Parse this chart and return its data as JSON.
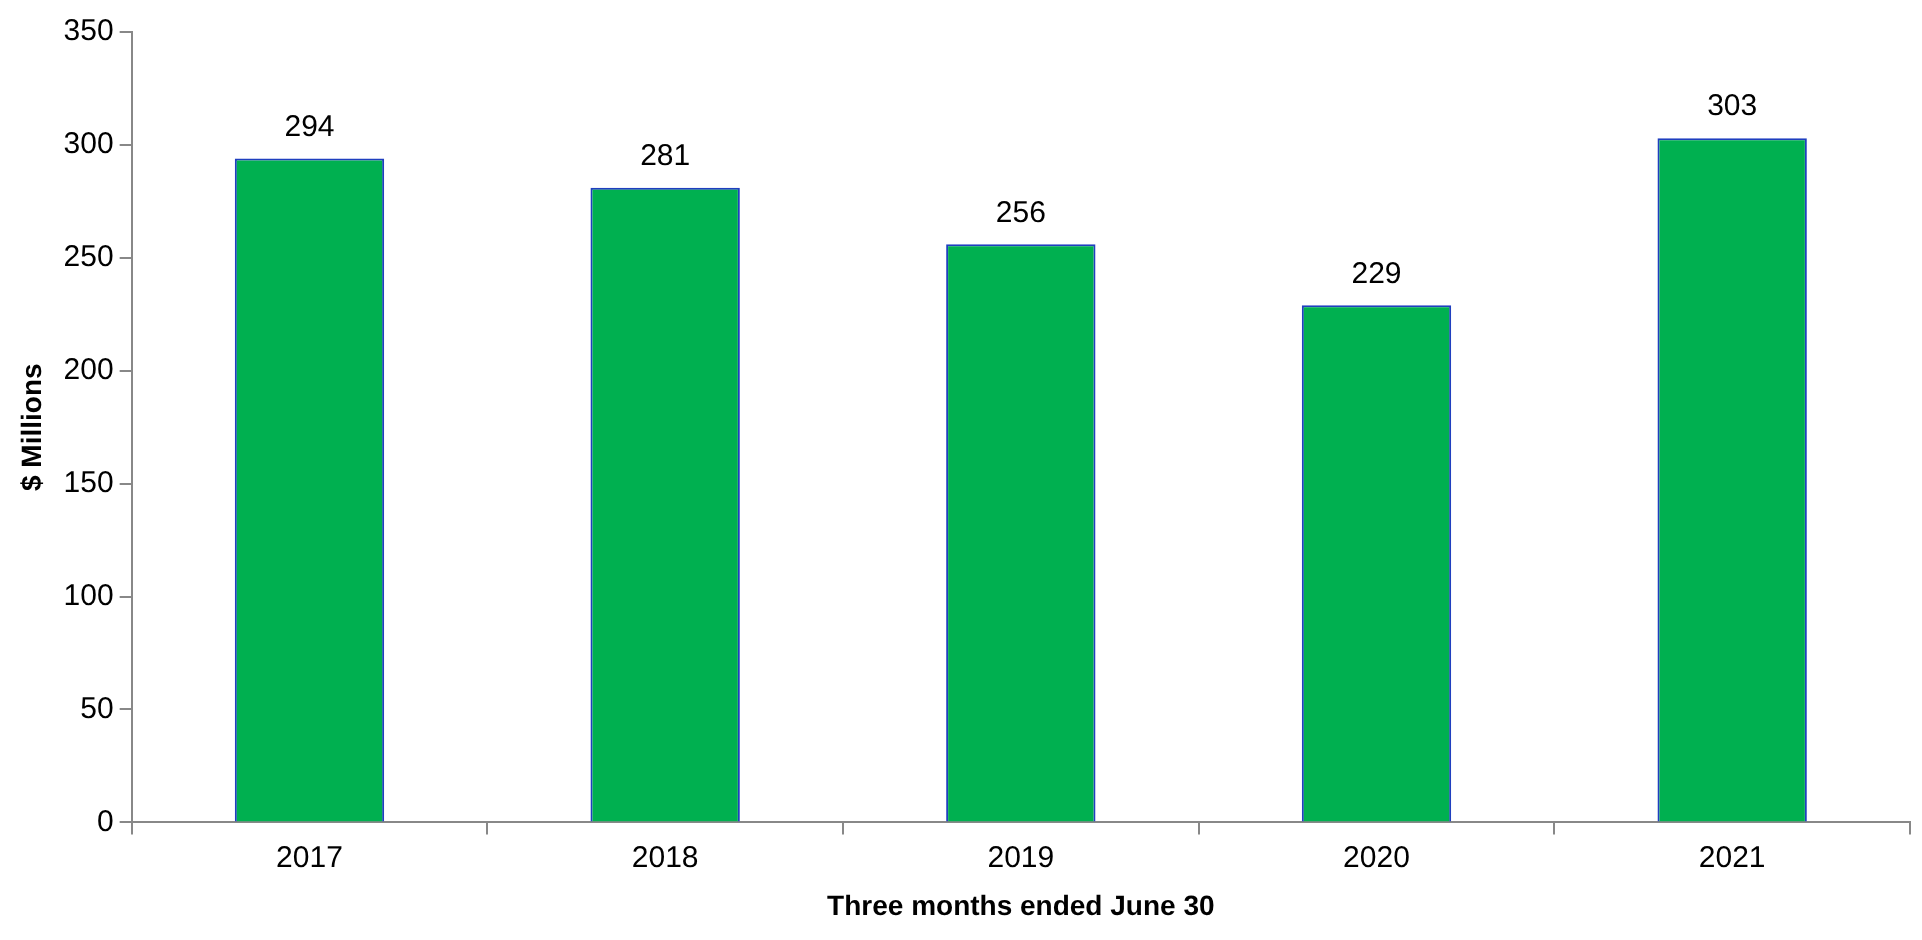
{
  "chart_data": {
    "type": "bar",
    "xlabel": "Three months ended June 30",
    "ylabel": "$ Millions",
    "categories": [
      "2017",
      "2018",
      "2019",
      "2020",
      "2021"
    ],
    "values": [
      294,
      281,
      256,
      229,
      303
    ],
    "color": "#00b050",
    "ylim": [
      0,
      350
    ],
    "yticks": [
      0,
      50,
      100,
      150,
      200,
      250,
      300,
      350
    ],
    "grid": false,
    "legend": false,
    "data_labels": true
  }
}
